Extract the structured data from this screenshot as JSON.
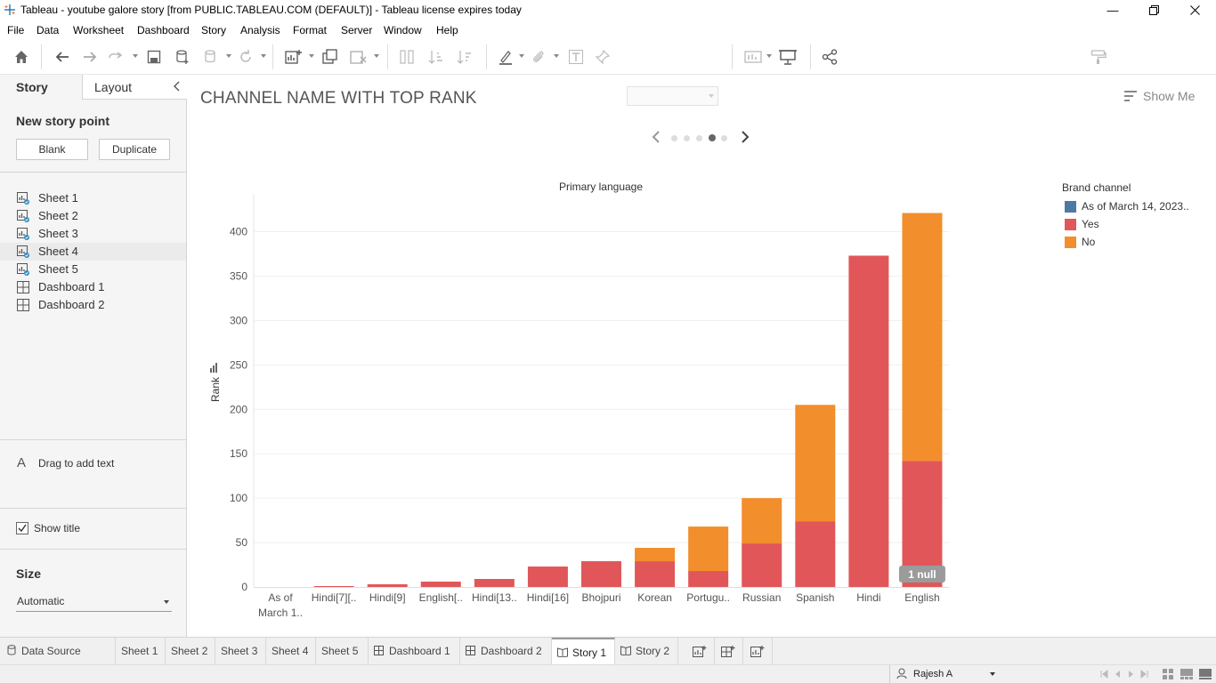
{
  "window": {
    "title": "Tableau - youtube galore story [from PUBLIC.TABLEAU.COM (DEFAULT)] - Tableau license expires today"
  },
  "menu": [
    "File",
    "Data",
    "Worksheet",
    "Dashboard",
    "Story",
    "Analysis",
    "Format",
    "Server",
    "Window",
    "Help"
  ],
  "toolbar": {
    "show_me_label": "Show Me"
  },
  "left_panel": {
    "tab_story": "Story",
    "tab_layout": "Layout",
    "new_story_point": "New story point",
    "blank_button": "Blank",
    "duplicate_button": "Duplicate",
    "sheets": [
      {
        "label": "Sheet 1",
        "type": "sheet"
      },
      {
        "label": "Sheet 2",
        "type": "sheet"
      },
      {
        "label": "Sheet 3",
        "type": "sheet"
      },
      {
        "label": "Sheet 4",
        "type": "sheet"
      },
      {
        "label": "Sheet 5",
        "type": "sheet"
      },
      {
        "label": "Dashboard 1",
        "type": "dashboard"
      },
      {
        "label": "Dashboard 2",
        "type": "dashboard"
      }
    ],
    "drag_text": "Drag to add text",
    "show_title_label": "Show title",
    "size_heading": "Size",
    "size_value": "Automatic"
  },
  "story": {
    "title": "CHANNEL NAME WITH TOP RANK",
    "nav_points": 5,
    "active_point": 4
  },
  "chart_data": {
    "type": "bar",
    "stacked": true,
    "title": "Primary language",
    "xlabel": "",
    "ylabel": "Rank",
    "ylim": [
      0,
      420
    ],
    "yticks": [
      0,
      50,
      100,
      150,
      200,
      250,
      300,
      350,
      400
    ],
    "grid": true,
    "categories": [
      "As of March 1..",
      "Hindi[7][..",
      "Hindi[9]",
      "English[..",
      "Hindi[13..",
      "Hindi[16]",
      "Bhojpuri",
      "Korean",
      "Portugu..",
      "Russian",
      "Spanish",
      "Hindi",
      "English"
    ],
    "series": [
      {
        "name": "As of March 14, 2023..",
        "color": "#4e79a7",
        "values": [
          0,
          0,
          0,
          0,
          0,
          0,
          0,
          0,
          0,
          0,
          0,
          0,
          0
        ]
      },
      {
        "name": "Yes",
        "color": "#e15759",
        "values": [
          0,
          1,
          3,
          6,
          9,
          23,
          29,
          29,
          18,
          49,
          74,
          373,
          142
        ]
      },
      {
        "name": "No",
        "color": "#f28e2b",
        "values": [
          0,
          0,
          0,
          0,
          0,
          0,
          0,
          15,
          50,
          51,
          131,
          0,
          279
        ]
      }
    ],
    "legend_title": "Brand channel",
    "legend_position": "right",
    "annotation": "1 null"
  },
  "bottom_tabs": [
    "Data Source",
    "Sheet 1",
    "Sheet 2",
    "Sheet 3",
    "Sheet 4",
    "Sheet 5",
    "Dashboard 1",
    "Dashboard 2",
    "Story 1",
    "Story 2"
  ],
  "active_tab": "Story 1",
  "status": {
    "user": "Rajesh A"
  }
}
